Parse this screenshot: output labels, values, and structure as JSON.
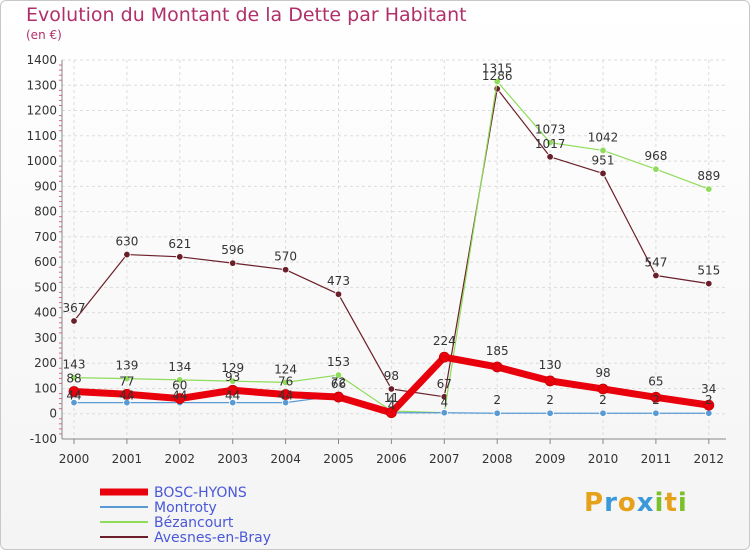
{
  "chart_data": {
    "type": "line",
    "title": "Evolution du Montant de la Dette par Habitant",
    "unit_label": "(en €)",
    "x": [
      "2000",
      "2001",
      "2002",
      "2003",
      "2004",
      "2005",
      "2006",
      "2007",
      "2008",
      "2009",
      "2010",
      "2011",
      "2012"
    ],
    "ylim": [
      -100,
      1400
    ],
    "yticks": [
      -100,
      0,
      100,
      200,
      300,
      400,
      500,
      600,
      700,
      800,
      900,
      1000,
      1100,
      1200,
      1300,
      1400
    ],
    "grid": true,
    "legend_position": "bottom-left",
    "series": [
      {
        "name": "Avesnes-en-Bray",
        "color": "#6b1f2a",
        "width": 1.2,
        "values": [
          367,
          630,
          621,
          596,
          570,
          473,
          98,
          67,
          1286,
          1017,
          951,
          547,
          515
        ]
      },
      {
        "name": "Bézancourt",
        "color": "#8fdc5a",
        "width": 1.2,
        "values": [
          143,
          139,
          134,
          129,
          124,
          153,
          11,
          4,
          1315,
          1073,
          1042,
          968,
          889
        ]
      },
      {
        "name": "Montroty",
        "color": "#5a9ad4",
        "width": 1.2,
        "values": [
          44,
          44,
          44,
          44,
          44,
          72,
          4,
          4,
          2,
          2,
          2,
          2,
          2
        ]
      },
      {
        "name": "BOSC-HYONS",
        "color": "#e8000c",
        "width": 7,
        "values": [
          88,
          77,
          60,
          93,
          76,
          66,
          4,
          224,
          185,
          130,
          98,
          65,
          34
        ]
      }
    ],
    "labels": [
      {
        "text": "367",
        "x": "2000",
        "y": 367,
        "dy": -9
      },
      {
        "text": "630",
        "x": "2001",
        "y": 630,
        "dy": -9
      },
      {
        "text": "621",
        "x": "2002",
        "y": 621,
        "dy": -9
      },
      {
        "text": "596",
        "x": "2003",
        "y": 596,
        "dy": -9
      },
      {
        "text": "570",
        "x": "2004",
        "y": 570,
        "dy": -9
      },
      {
        "text": "473",
        "x": "2005",
        "y": 473,
        "dy": -9
      },
      {
        "text": "98",
        "x": "2006",
        "y": 98,
        "dy": -9
      },
      {
        "text": "67",
        "x": "2007",
        "y": 67,
        "dy": -9
      },
      {
        "text": "1286",
        "x": "2008",
        "y": 1286,
        "dy": -9
      },
      {
        "text": "1017",
        "x": "2009",
        "y": 1017,
        "dy": -9
      },
      {
        "text": "951",
        "x": "2010",
        "y": 951,
        "dy": -9
      },
      {
        "text": "547",
        "x": "2011",
        "y": 547,
        "dy": -9
      },
      {
        "text": "515",
        "x": "2012",
        "y": 515,
        "dy": -9
      },
      {
        "text": "143",
        "x": "2000",
        "y": 143,
        "dy": -9
      },
      {
        "text": "139",
        "x": "2001",
        "y": 139,
        "dy": -9
      },
      {
        "text": "134",
        "x": "2002",
        "y": 134,
        "dy": -9
      },
      {
        "text": "129",
        "x": "2003",
        "y": 129,
        "dy": -9
      },
      {
        "text": "124",
        "x": "2004",
        "y": 124,
        "dy": -9
      },
      {
        "text": "153",
        "x": "2005",
        "y": 153,
        "dy": -9
      },
      {
        "text": "11",
        "x": "2006",
        "y": 11,
        "dy": -9
      },
      {
        "text": "4",
        "x": "2007",
        "y": 4,
        "dy": -6
      },
      {
        "text": "1315",
        "x": "2008",
        "y": 1315,
        "dy": -9
      },
      {
        "text": "1073",
        "x": "2009",
        "y": 1073,
        "dy": -9
      },
      {
        "text": "1042",
        "x": "2010",
        "y": 1042,
        "dy": -9
      },
      {
        "text": "968",
        "x": "2011",
        "y": 968,
        "dy": -9
      },
      {
        "text": "889",
        "x": "2012",
        "y": 889,
        "dy": -9
      },
      {
        "text": "44",
        "x": "2000",
        "y": 44,
        "dy": -3
      },
      {
        "text": "44",
        "x": "2001",
        "y": 44,
        "dy": -3
      },
      {
        "text": "44",
        "x": "2002",
        "y": 44,
        "dy": -3
      },
      {
        "text": "44",
        "x": "2003",
        "y": 44,
        "dy": -3
      },
      {
        "text": "44",
        "x": "2004",
        "y": 44,
        "dy": -3
      },
      {
        "text": "72",
        "x": "2005",
        "y": 72,
        "dy": -9
      },
      {
        "text": "4",
        "x": "2006",
        "y": 4,
        "dy": -9
      },
      {
        "text": "2",
        "x": "2008",
        "y": 2,
        "dy": -9
      },
      {
        "text": "2",
        "x": "2009",
        "y": 2,
        "dy": -9
      },
      {
        "text": "2",
        "x": "2010",
        "y": 2,
        "dy": -9
      },
      {
        "text": "2",
        "x": "2011",
        "y": 2,
        "dy": -9
      },
      {
        "text": "2",
        "x": "2012",
        "y": 2,
        "dy": -9
      },
      {
        "text": "88",
        "x": "2000",
        "y": 88,
        "dy": -9
      },
      {
        "text": "77",
        "x": "2001",
        "y": 77,
        "dy": -9
      },
      {
        "text": "60",
        "x": "2002",
        "y": 60,
        "dy": -9
      },
      {
        "text": "93",
        "x": "2003",
        "y": 93,
        "dy": -9
      },
      {
        "text": "76",
        "x": "2004",
        "y": 76,
        "dy": -9
      },
      {
        "text": "66",
        "x": "2005",
        "y": 66,
        "dy": -9
      },
      {
        "text": "4",
        "x": "2006",
        "y": 4,
        "dy": -3
      },
      {
        "text": "224",
        "x": "2007",
        "y": 224,
        "dy": -12
      },
      {
        "text": "185",
        "x": "2008",
        "y": 185,
        "dy": -12
      },
      {
        "text": "130",
        "x": "2009",
        "y": 130,
        "dy": -12
      },
      {
        "text": "98",
        "x": "2010",
        "y": 98,
        "dy": -12
      },
      {
        "text": "65",
        "x": "2011",
        "y": 65,
        "dy": -12
      },
      {
        "text": "34",
        "x": "2012",
        "y": 34,
        "dy": -12
      }
    ],
    "legend_order": [
      "BOSC-HYONS",
      "Montroty",
      "Bézancourt",
      "Avesnes-en-Bray"
    ]
  },
  "logo": {
    "letters": [
      "P",
      "r",
      "o",
      "x",
      "i",
      "t",
      "i"
    ],
    "colors": [
      "#e6a11a",
      "#3a9ad9",
      "#e6a11a",
      "#3a9ad9",
      "#7bbf2a",
      "#e6a11a",
      "#7bbf2a"
    ]
  }
}
